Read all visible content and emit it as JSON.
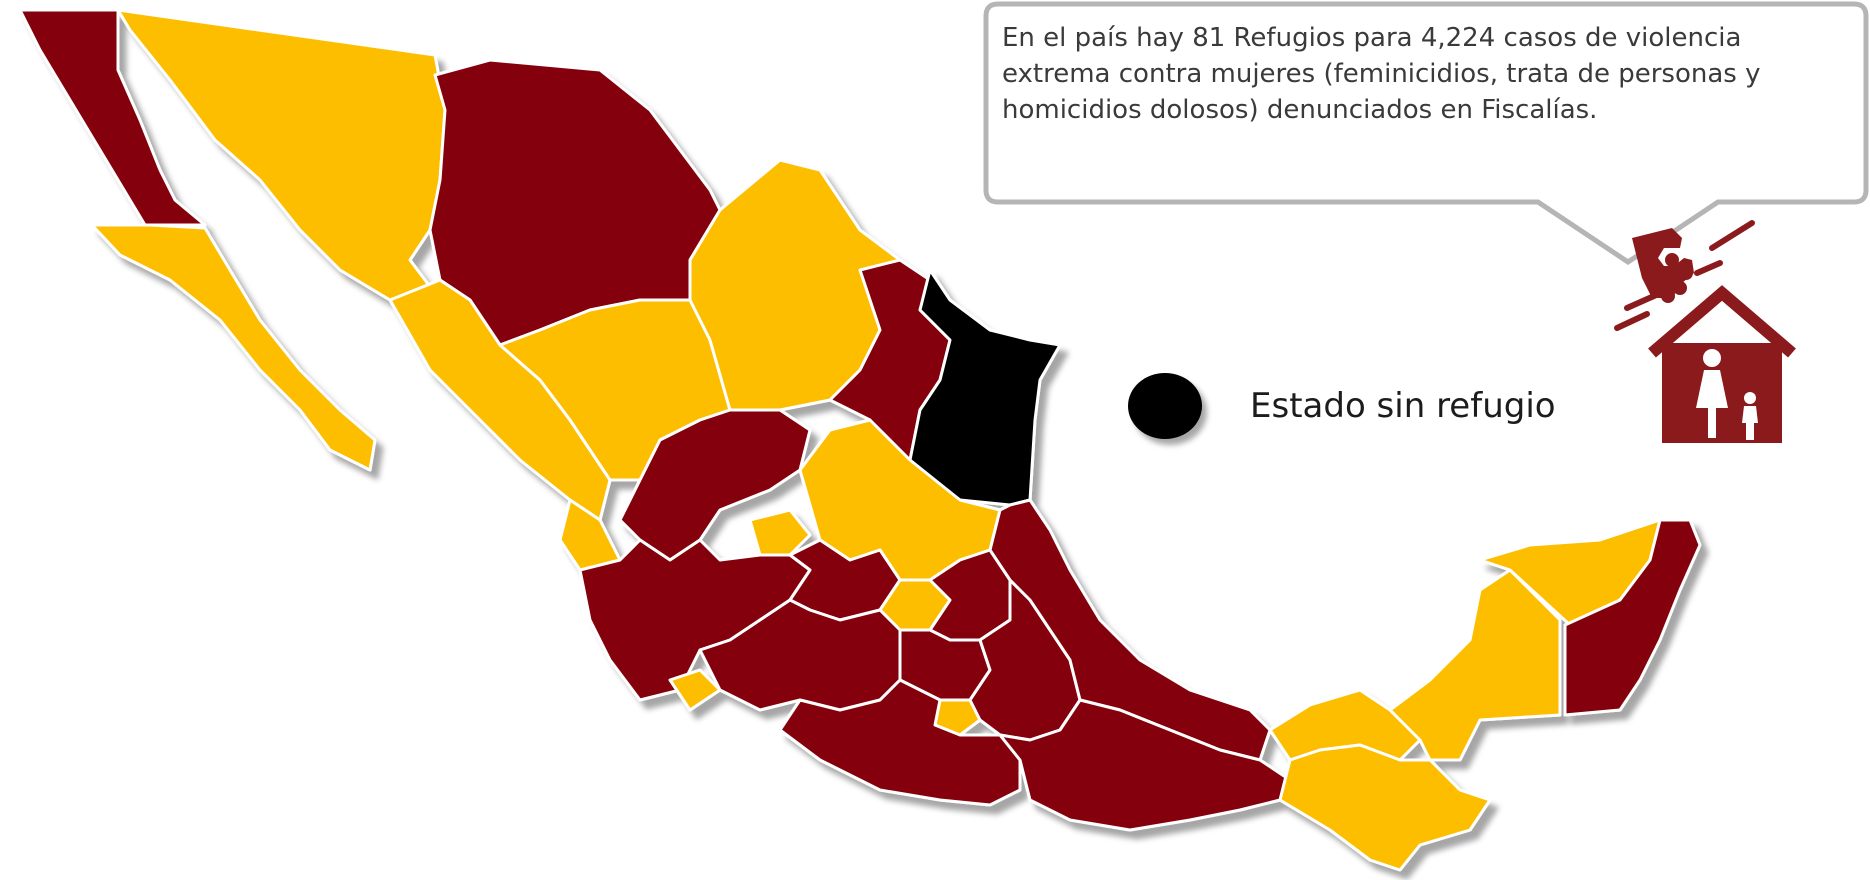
{
  "callout": {
    "text": "En el país hay 81 Refugios para 4,224 casos de violencia extrema contra mujeres (feminicidios, trata de personas y homicidios dolosos) denunciados en Fiscalías."
  },
  "legend": {
    "label": "Estado sin refugio",
    "marker_color": "#000000"
  },
  "colors": {
    "with_refuge_dark": "#850507",
    "with_refuge_light": "#FDBE03",
    "without_refuge": "#000000",
    "callout_border": "#b5b5b5",
    "icon": "#8b1a1d"
  },
  "icons": {
    "shelter": "fist-and-shelter-icon"
  }
}
